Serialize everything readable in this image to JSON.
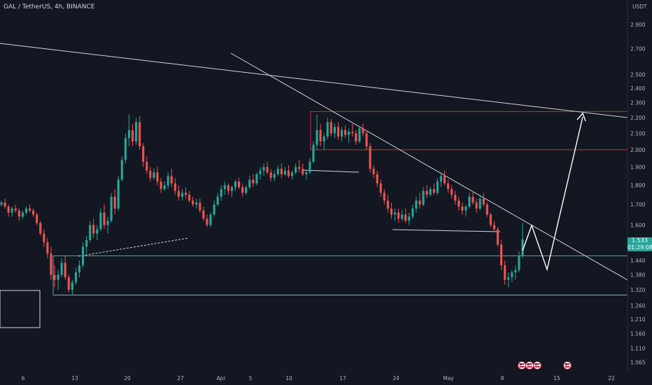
{
  "symbol_title": "GAL / TetherUS, 4h, BINANCE",
  "currency": "USDT",
  "price_badge": {
    "price": "1.533",
    "countdown": "01:29:08",
    "color": "#26a69a"
  },
  "colors": {
    "background": "#131722",
    "up": "#26a69a",
    "down": "#ef5350",
    "trendline": "#d1d4dc",
    "resistance": "#f23645",
    "support": "#80cbc4",
    "axis_text": "#b2b5be"
  },
  "event_icons": [
    "flag-us-icon",
    "flag-us-icon",
    "flag-us-icon",
    "flag-us-icon"
  ],
  "chart_data": {
    "type": "candlestick",
    "y_scale": "log",
    "ylim": [
      1.03,
      3.15
    ],
    "y_ticks": [
      "2.900",
      "2.700",
      "2.500",
      "2.400",
      "2.300",
      "2.200",
      "2.100",
      "2.000",
      "1.900",
      "1.800",
      "1.700",
      "1.600",
      "1.440",
      "1.380",
      "1.320",
      "1.260",
      "1.210",
      "1.160",
      "1.110",
      "1.065"
    ],
    "x_ticks": [
      "6",
      "13",
      "20",
      "27",
      "Apr",
      "5",
      "10",
      "17",
      "24",
      "May",
      "8",
      "15",
      "22"
    ],
    "candles": [
      [
        1.7,
        1.72,
        1.69,
        1.71
      ],
      [
        1.71,
        1.73,
        1.68,
        1.69
      ],
      [
        1.69,
        1.7,
        1.64,
        1.66
      ],
      [
        1.66,
        1.69,
        1.64,
        1.68
      ],
      [
        1.68,
        1.7,
        1.66,
        1.67
      ],
      [
        1.67,
        1.68,
        1.62,
        1.64
      ],
      [
        1.64,
        1.67,
        1.63,
        1.66
      ],
      [
        1.66,
        1.69,
        1.65,
        1.68
      ],
      [
        1.68,
        1.7,
        1.66,
        1.67
      ],
      [
        1.67,
        1.68,
        1.64,
        1.65
      ],
      [
        1.65,
        1.66,
        1.6,
        1.61
      ],
      [
        1.61,
        1.62,
        1.55,
        1.56
      ],
      [
        1.56,
        1.58,
        1.5,
        1.52
      ],
      [
        1.52,
        1.54,
        1.45,
        1.47
      ],
      [
        1.47,
        1.5,
        1.36,
        1.38
      ],
      [
        1.38,
        1.42,
        1.33,
        1.36
      ],
      [
        1.36,
        1.4,
        1.32,
        1.38
      ],
      [
        1.38,
        1.45,
        1.37,
        1.43
      ],
      [
        1.43,
        1.46,
        1.36,
        1.37
      ],
      [
        1.37,
        1.38,
        1.31,
        1.32
      ],
      [
        1.32,
        1.36,
        1.3,
        1.35
      ],
      [
        1.35,
        1.41,
        1.34,
        1.39
      ],
      [
        1.39,
        1.44,
        1.37,
        1.42
      ],
      [
        1.42,
        1.52,
        1.41,
        1.5
      ],
      [
        1.5,
        1.55,
        1.47,
        1.53
      ],
      [
        1.53,
        1.62,
        1.52,
        1.6
      ],
      [
        1.6,
        1.63,
        1.54,
        1.56
      ],
      [
        1.56,
        1.6,
        1.53,
        1.58
      ],
      [
        1.58,
        1.68,
        1.57,
        1.66
      ],
      [
        1.66,
        1.7,
        1.58,
        1.6
      ],
      [
        1.6,
        1.64,
        1.56,
        1.62
      ],
      [
        1.62,
        1.76,
        1.61,
        1.74
      ],
      [
        1.74,
        1.78,
        1.65,
        1.68
      ],
      [
        1.68,
        1.85,
        1.67,
        1.83
      ],
      [
        1.83,
        1.96,
        1.82,
        1.94
      ],
      [
        1.94,
        2.1,
        1.92,
        2.07
      ],
      [
        2.07,
        2.22,
        2.02,
        2.12
      ],
      [
        2.12,
        2.16,
        2.02,
        2.05
      ],
      [
        2.05,
        2.2,
        2.03,
        2.17
      ],
      [
        2.17,
        2.21,
        2.0,
        2.02
      ],
      [
        2.02,
        2.04,
        1.9,
        1.93
      ],
      [
        1.93,
        1.96,
        1.86,
        1.88
      ],
      [
        1.88,
        1.9,
        1.82,
        1.84
      ],
      [
        1.84,
        1.89,
        1.83,
        1.87
      ],
      [
        1.87,
        1.9,
        1.8,
        1.82
      ],
      [
        1.82,
        1.84,
        1.76,
        1.78
      ],
      [
        1.78,
        1.82,
        1.77,
        1.8
      ],
      [
        1.8,
        1.87,
        1.78,
        1.85
      ],
      [
        1.85,
        1.89,
        1.79,
        1.81
      ],
      [
        1.81,
        1.84,
        1.75,
        1.77
      ],
      [
        1.77,
        1.8,
        1.72,
        1.74
      ],
      [
        1.74,
        1.78,
        1.72,
        1.76
      ],
      [
        1.76,
        1.79,
        1.73,
        1.75
      ],
      [
        1.75,
        1.77,
        1.71,
        1.72
      ],
      [
        1.72,
        1.74,
        1.69,
        1.7
      ],
      [
        1.7,
        1.73,
        1.68,
        1.71
      ],
      [
        1.71,
        1.73,
        1.66,
        1.67
      ],
      [
        1.67,
        1.69,
        1.62,
        1.63
      ],
      [
        1.63,
        1.65,
        1.59,
        1.6
      ],
      [
        1.6,
        1.66,
        1.59,
        1.65
      ],
      [
        1.65,
        1.72,
        1.64,
        1.7
      ],
      [
        1.7,
        1.76,
        1.69,
        1.74
      ],
      [
        1.74,
        1.8,
        1.72,
        1.78
      ],
      [
        1.78,
        1.82,
        1.75,
        1.8
      ],
      [
        1.8,
        1.81,
        1.75,
        1.77
      ],
      [
        1.77,
        1.8,
        1.74,
        1.79
      ],
      [
        1.79,
        1.83,
        1.77,
        1.82
      ],
      [
        1.82,
        1.84,
        1.78,
        1.79
      ],
      [
        1.79,
        1.81,
        1.74,
        1.76
      ],
      [
        1.76,
        1.8,
        1.75,
        1.79
      ],
      [
        1.79,
        1.85,
        1.78,
        1.83
      ],
      [
        1.83,
        1.86,
        1.79,
        1.81
      ],
      [
        1.81,
        1.87,
        1.8,
        1.86
      ],
      [
        1.86,
        1.9,
        1.83,
        1.88
      ],
      [
        1.88,
        1.92,
        1.85,
        1.9
      ],
      [
        1.9,
        1.93,
        1.86,
        1.87
      ],
      [
        1.87,
        1.89,
        1.82,
        1.84
      ],
      [
        1.84,
        1.88,
        1.82,
        1.86
      ],
      [
        1.86,
        1.91,
        1.85,
        1.89
      ],
      [
        1.89,
        1.92,
        1.84,
        1.86
      ],
      [
        1.86,
        1.9,
        1.85,
        1.88
      ],
      [
        1.88,
        1.91,
        1.84,
        1.85
      ],
      [
        1.85,
        1.88,
        1.83,
        1.87
      ],
      [
        1.87,
        1.92,
        1.86,
        1.9
      ],
      [
        1.9,
        1.94,
        1.87,
        1.89
      ],
      [
        1.89,
        1.92,
        1.85,
        1.86
      ],
      [
        1.86,
        1.88,
        1.83,
        1.87
      ],
      [
        1.87,
        1.95,
        1.86,
        1.93
      ],
      [
        1.93,
        2.05,
        1.92,
        2.03
      ],
      [
        2.03,
        2.22,
        2.0,
        2.12
      ],
      [
        2.12,
        2.16,
        2.02,
        2.05
      ],
      [
        2.05,
        2.1,
        2.0,
        2.08
      ],
      [
        2.08,
        2.2,
        2.06,
        2.17
      ],
      [
        2.17,
        2.19,
        2.08,
        2.1
      ],
      [
        2.1,
        2.16,
        2.07,
        2.14
      ],
      [
        2.14,
        2.17,
        2.06,
        2.08
      ],
      [
        2.08,
        2.14,
        2.05,
        2.12
      ],
      [
        2.12,
        2.15,
        2.07,
        2.09
      ],
      [
        2.09,
        2.13,
        2.04,
        2.11
      ],
      [
        2.11,
        2.16,
        2.08,
        2.1
      ],
      [
        2.1,
        2.12,
        2.03,
        2.05
      ],
      [
        2.05,
        2.14,
        2.04,
        2.13
      ],
      [
        2.13,
        2.16,
        2.08,
        2.1
      ],
      [
        2.1,
        2.12,
        2.0,
        2.02
      ],
      [
        2.02,
        2.04,
        1.87,
        1.89
      ],
      [
        1.89,
        1.91,
        1.84,
        1.86
      ],
      [
        1.86,
        1.88,
        1.79,
        1.81
      ],
      [
        1.81,
        1.83,
        1.74,
        1.76
      ],
      [
        1.76,
        1.78,
        1.7,
        1.72
      ],
      [
        1.72,
        1.75,
        1.66,
        1.68
      ],
      [
        1.68,
        1.71,
        1.63,
        1.65
      ],
      [
        1.65,
        1.68,
        1.62,
        1.66
      ],
      [
        1.66,
        1.68,
        1.61,
        1.63
      ],
      [
        1.63,
        1.67,
        1.62,
        1.65
      ],
      [
        1.65,
        1.68,
        1.61,
        1.62
      ],
      [
        1.62,
        1.66,
        1.6,
        1.64
      ],
      [
        1.64,
        1.7,
        1.63,
        1.68
      ],
      [
        1.68,
        1.74,
        1.66,
        1.72
      ],
      [
        1.72,
        1.76,
        1.68,
        1.7
      ],
      [
        1.7,
        1.79,
        1.69,
        1.77
      ],
      [
        1.77,
        1.8,
        1.73,
        1.75
      ],
      [
        1.75,
        1.79,
        1.74,
        1.78
      ],
      [
        1.78,
        1.81,
        1.75,
        1.76
      ],
      [
        1.76,
        1.84,
        1.75,
        1.82
      ],
      [
        1.82,
        1.87,
        1.79,
        1.85
      ],
      [
        1.85,
        1.88,
        1.8,
        1.81
      ],
      [
        1.81,
        1.83,
        1.76,
        1.78
      ],
      [
        1.78,
        1.8,
        1.73,
        1.75
      ],
      [
        1.75,
        1.77,
        1.7,
        1.72
      ],
      [
        1.72,
        1.74,
        1.67,
        1.69
      ],
      [
        1.69,
        1.71,
        1.65,
        1.67
      ],
      [
        1.67,
        1.7,
        1.64,
        1.69
      ],
      [
        1.69,
        1.76,
        1.68,
        1.74
      ],
      [
        1.74,
        1.77,
        1.7,
        1.71
      ],
      [
        1.71,
        1.73,
        1.66,
        1.68
      ],
      [
        1.68,
        1.75,
        1.67,
        1.73
      ],
      [
        1.73,
        1.76,
        1.69,
        1.7
      ],
      [
        1.7,
        1.71,
        1.64,
        1.65
      ],
      [
        1.65,
        1.66,
        1.59,
        1.6
      ],
      [
        1.6,
        1.62,
        1.57,
        1.58
      ],
      [
        1.58,
        1.59,
        1.5,
        1.51
      ],
      [
        1.51,
        1.53,
        1.4,
        1.42
      ],
      [
        1.42,
        1.44,
        1.34,
        1.36
      ],
      [
        1.36,
        1.39,
        1.33,
        1.37
      ],
      [
        1.37,
        1.4,
        1.35,
        1.39
      ],
      [
        1.39,
        1.42,
        1.36,
        1.4
      ],
      [
        1.4,
        1.48,
        1.39,
        1.46
      ],
      [
        1.46,
        1.61,
        1.45,
        1.533
      ]
    ],
    "levels": [
      {
        "name": "upper-resistance",
        "price": 2.24,
        "color": "#f23645"
      },
      {
        "name": "lower-resistance",
        "price": 2.0,
        "color": "#f23645"
      },
      {
        "name": "upper-support",
        "price": 1.46,
        "color": "#80cbc4"
      },
      {
        "name": "lower-support",
        "price": 1.3,
        "color": "#80cbc4"
      }
    ]
  }
}
